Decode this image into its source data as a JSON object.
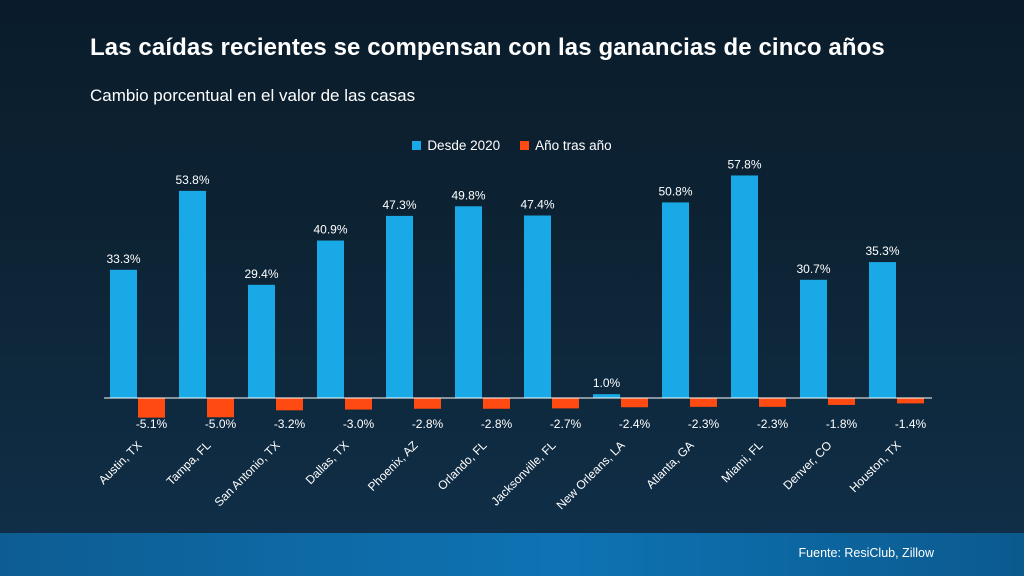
{
  "chart_data": {
    "type": "bar",
    "title": "Las caídas recientes se compensan con las ganancias de cinco años",
    "subtitle": "Cambio porcentual en el valor de las casas",
    "categories": [
      "Austin, TX",
      "Tampa, FL",
      "San Antonio, TX",
      "Dallas, TX",
      "Phoenix, AZ",
      "Orlando, FL",
      "Jacksonville, FL",
      "New Orleans, LA",
      "Atlanta, GA",
      "Miami, FL",
      "Denver, CO",
      "Houston, TX"
    ],
    "series": [
      {
        "name": "Desde 2020",
        "color": "#19a9e6",
        "values": [
          33.3,
          53.8,
          29.4,
          40.9,
          47.3,
          49.8,
          47.4,
          1.0,
          50.8,
          57.8,
          30.7,
          35.3
        ],
        "labels": [
          "33.3%",
          "53.8%",
          "29.4%",
          "40.9%",
          "47.3%",
          "49.8%",
          "47.4%",
          "1.0%",
          "50.8%",
          "57.8%",
          "30.7%",
          "35.3%"
        ]
      },
      {
        "name": "Año tras año",
        "color": "#ff4a12",
        "values": [
          -5.1,
          -5.0,
          -3.2,
          -3.0,
          -2.8,
          -2.8,
          -2.7,
          -2.4,
          -2.3,
          -2.3,
          -1.8,
          -1.4
        ],
        "labels": [
          "-5.1%",
          "-5.0%",
          "-3.2%",
          "-3.0%",
          "-2.8%",
          "-2.8%",
          "-2.7%",
          "-2.4%",
          "-2.3%",
          "-2.3%",
          "-1.8%",
          "-1.4%"
        ]
      }
    ],
    "legend": "top-center",
    "grid": false
  },
  "footer": {
    "source": "Fuente: ResiClub, Zillow"
  }
}
